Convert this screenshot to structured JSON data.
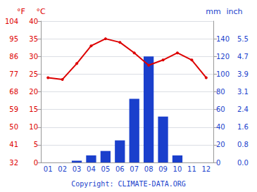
{
  "chart_data": {
    "type": "bar",
    "categories": [
      "01",
      "02",
      "03",
      "04",
      "05",
      "06",
      "07",
      "08",
      "09",
      "10",
      "11",
      "12"
    ],
    "series": [
      {
        "type": "bar",
        "axis": "y2",
        "color": "#1a3fcc",
        "values": [
          0,
          0,
          2,
          8,
          13,
          25,
          72,
          120,
          52,
          8,
          0,
          0
        ]
      },
      {
        "type": "line",
        "axis": "y",
        "color": "#dd0000",
        "marker": "circle",
        "values": [
          24,
          23.5,
          28,
          33,
          35,
          34,
          31,
          27.5,
          29,
          31,
          29,
          24
        ]
      }
    ],
    "ylabel": "°C",
    "ylim": [
      0,
      40
    ],
    "yticks": [
      0,
      5,
      10,
      15,
      20,
      25,
      30,
      35,
      40
    ],
    "ylabel_alt": "°F",
    "yticks_alt": [
      {
        "value": 0,
        "label": "32"
      },
      {
        "value": 5,
        "label": "41"
      },
      {
        "value": 10,
        "label": "50"
      },
      {
        "value": 15,
        "label": "59"
      },
      {
        "value": 20,
        "label": "68"
      },
      {
        "value": 25,
        "label": "77"
      },
      {
        "value": 30,
        "label": "86"
      },
      {
        "value": 35,
        "label": "95"
      },
      {
        "value": 40,
        "label": "104"
      }
    ],
    "y2label": "mm",
    "y2lim": [
      0,
      160
    ],
    "y2ticks": [
      0,
      20,
      40,
      60,
      80,
      100,
      120,
      140
    ],
    "y2label_alt": "inch",
    "y2ticks_alt": [
      {
        "value": 0,
        "label": "0.0"
      },
      {
        "value": 20,
        "label": "0.8"
      },
      {
        "value": 40,
        "label": "1.6"
      },
      {
        "value": 60,
        "label": "2.4"
      },
      {
        "value": 80,
        "label": "3.1"
      },
      {
        "value": 100,
        "label": "3.9"
      },
      {
        "value": 120,
        "label": "4.7"
      },
      {
        "value": 140,
        "label": "5.5"
      }
    ],
    "caption": "Copyright: CLIMATE-DATA.ORG",
    "grid": true
  }
}
